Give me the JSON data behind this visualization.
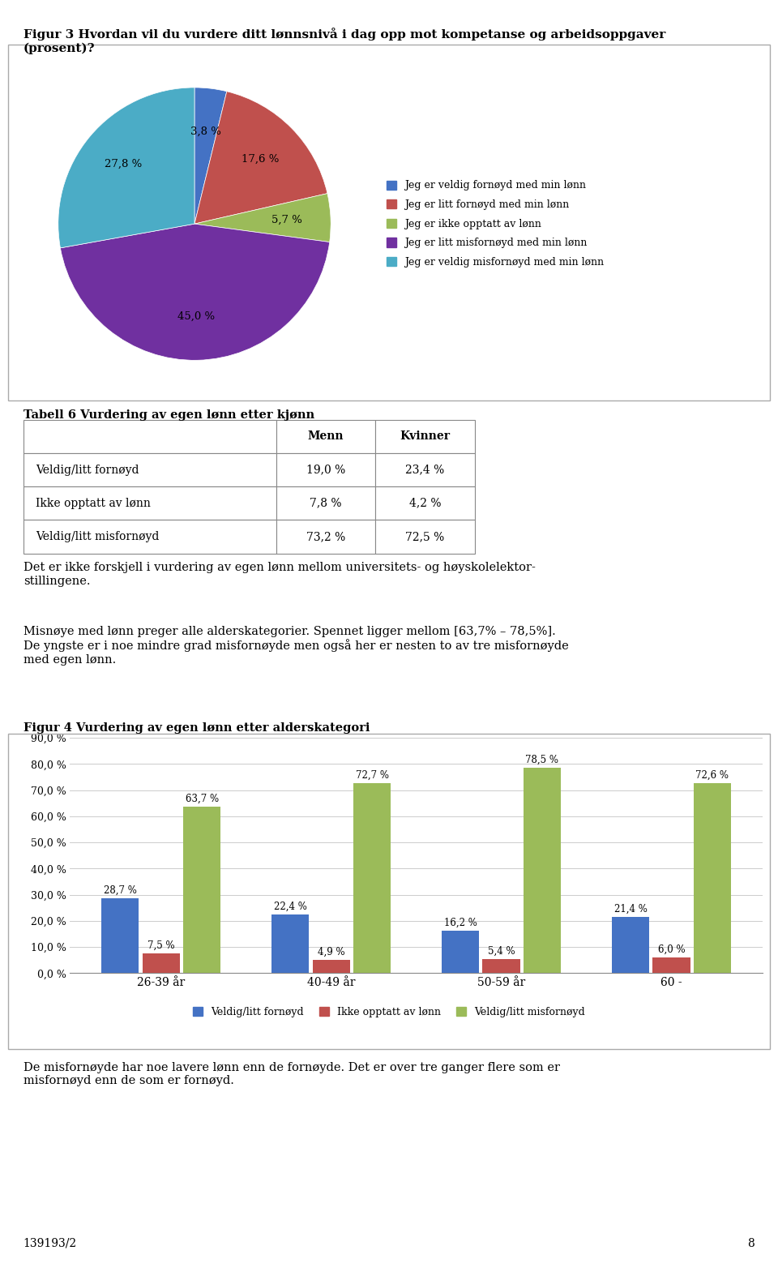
{
  "fig_title": "Figur 3 Hvordan vil du vurdere ditt lønnsnivå i dag opp mot kompetanse og arbeidsoppgaver\n(prosent)?",
  "pie_values": [
    3.8,
    17.6,
    5.7,
    45.0,
    27.8
  ],
  "pie_labels": [
    "3,8 %",
    "17,6 %",
    "5,7 %",
    "45,0 %",
    "27,8 %"
  ],
  "pie_colors": [
    "#4472c4",
    "#c0504d",
    "#9bbb59",
    "#7030a0",
    "#4bacc6"
  ],
  "pie_legend": [
    "Jeg er veldig fornøyd med min lønn",
    "Jeg er litt fornøyd med min lønn",
    "Jeg er ikke opptatt av lønn",
    "Jeg er litt misfornøyd med min lønn",
    "Jeg er veldig misfornøyd med min lønn"
  ],
  "table_title": "Tabell 6 Vurdering av egen lønn etter kjønn",
  "table_rows": [
    "Veldig/litt fornøyd",
    "Ikke opptatt av lønn",
    "Veldig/litt misfornøyd"
  ],
  "table_menn": [
    "19,0 %",
    "7,8 %",
    "73,2 %"
  ],
  "table_kvinner": [
    "23,4 %",
    "4,2 %",
    "72,5 %"
  ],
  "text1": "Det er ikke forskjell i vurdering av egen lønn mellom universitets- og høyskolelektor-\nstillingene.",
  "text2": "Misnøye med lønn preger alle alderskategorier. Spennet ligger mellom [63,7% – 78,5%].\nDe yngste er i noe mindre grad misfornøyde men også her er nesten to av tre misfornøyde\nmed egen lønn.",
  "bar_title": "Figur 4 Vurdering av egen lønn etter alderskategori",
  "bar_categories": [
    "26-39 år",
    "40-49 år",
    "50-59 år",
    "60 -"
  ],
  "bar_fornøyd": [
    28.7,
    22.4,
    16.2,
    21.4
  ],
  "bar_opptatt": [
    7.5,
    4.9,
    5.4,
    6.0
  ],
  "bar_misfornøyd": [
    63.7,
    72.7,
    78.5,
    72.6
  ],
  "bar_colors": [
    "#4472c4",
    "#c0504d",
    "#9bbb59"
  ],
  "bar_legend": [
    "Veldig/litt fornøyd",
    "Ikke opptatt av lønn",
    "Veldig/litt misfornøyd"
  ],
  "bar_ylim": [
    0,
    90
  ],
  "bar_yticks": [
    0,
    10,
    20,
    30,
    40,
    50,
    60,
    70,
    80,
    90
  ],
  "bar_ytick_labels": [
    "0,0 %",
    "10,0 %",
    "20,0 %",
    "30,0 %",
    "40,0 %",
    "50,0 %",
    "60,0 %",
    "70,0 %",
    "80,0 %",
    "90,0 %"
  ],
  "footer_text": "De misfornøyde har noe lavere lønn enn de fornøyde. Det er over tre ganger flere som er\nmisfornøyd enn de som er fornøyd.",
  "page_ref": "139193/2",
  "page_num": "8"
}
